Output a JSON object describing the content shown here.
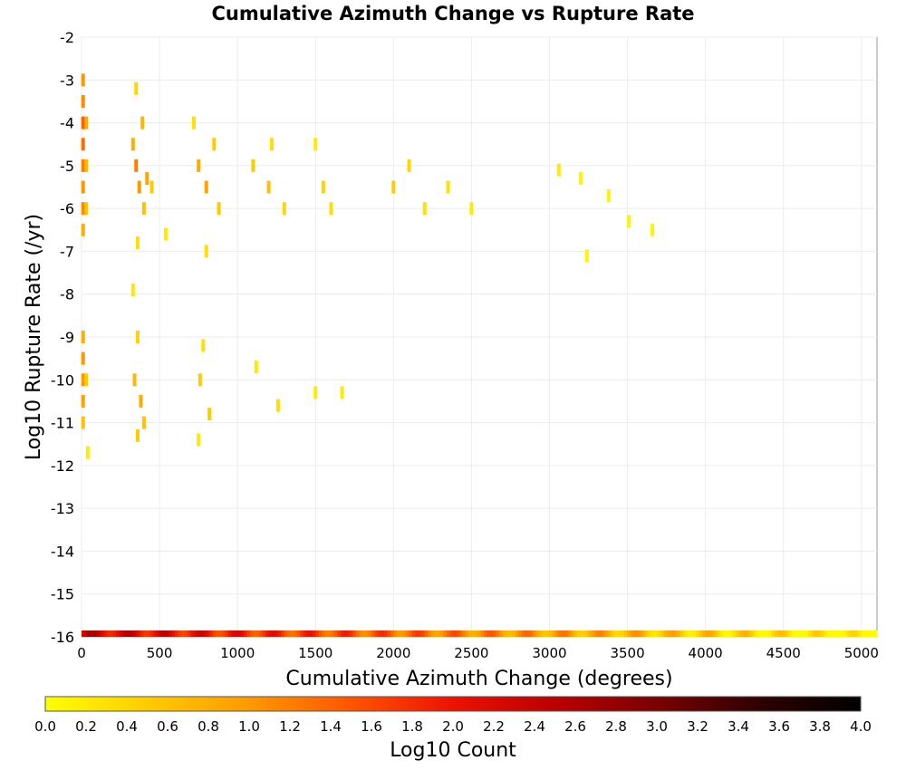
{
  "chart_data": {
    "type": "heatmap",
    "title": "Cumulative Azimuth Change vs Rupture Rate",
    "xlabel": "Cumulative Azimuth Change (degrees)",
    "ylabel": "Log10 Rupture Rate (/yr)",
    "xlim": [
      0,
      5100
    ],
    "ylim": [
      -16,
      -2
    ],
    "grid": true,
    "x_ticks": [
      "0",
      "500",
      "1000",
      "1500",
      "2000",
      "2500",
      "3000",
      "3500",
      "4000",
      "4500",
      "5000"
    ],
    "y_ticks": [
      "-2",
      "-3",
      "-4",
      "-5",
      "-6",
      "-7",
      "-8",
      "-9",
      "-10",
      "-11",
      "-12",
      "-13",
      "-14",
      "-15",
      "-16"
    ],
    "colorbar": {
      "label": "Log10 Count",
      "range": [
        0.0,
        4.0
      ],
      "ticks": [
        "0.0",
        "0.2",
        "0.4",
        "0.6",
        "0.8",
        "1.0",
        "1.2",
        "1.4",
        "1.6",
        "1.8",
        "2.0",
        "2.2",
        "2.4",
        "2.6",
        "2.8",
        "3.0",
        "3.2",
        "3.4",
        "3.6",
        "3.8",
        "4.0"
      ],
      "colors": [
        "#ffff00",
        "#ffcc00",
        "#ff9900",
        "#ff5500",
        "#ee1100",
        "#bb0000",
        "#7a0000",
        "#300000",
        "#000000"
      ]
    },
    "cells": [
      {
        "x": 10,
        "y": -3,
        "v": 1.0
      },
      {
        "x": 10,
        "y": -3.5,
        "v": 1.1
      },
      {
        "x": 10,
        "y": -4,
        "v": 1.4
      },
      {
        "x": 10,
        "y": -4.5,
        "v": 1.3
      },
      {
        "x": 10,
        "y": -5,
        "v": 1.2
      },
      {
        "x": 10,
        "y": -5.5,
        "v": 1.0
      },
      {
        "x": 10,
        "y": -6,
        "v": 1.1
      },
      {
        "x": 10,
        "y": -6.5,
        "v": 0.8
      },
      {
        "x": 10,
        "y": -9,
        "v": 0.8
      },
      {
        "x": 10,
        "y": -9.5,
        "v": 1.0
      },
      {
        "x": 10,
        "y": -10,
        "v": 1.0
      },
      {
        "x": 10,
        "y": -10.5,
        "v": 0.9
      },
      {
        "x": 10,
        "y": -11,
        "v": 0.6
      },
      {
        "x": 30,
        "y": -4,
        "v": 0.8
      },
      {
        "x": 30,
        "y": -5,
        "v": 0.7
      },
      {
        "x": 30,
        "y": -6,
        "v": 0.6
      },
      {
        "x": 30,
        "y": -10,
        "v": 0.5
      },
      {
        "x": 40,
        "y": -11.7,
        "v": 0.2
      },
      {
        "x": 350,
        "y": -3.2,
        "v": 0.4
      },
      {
        "x": 330,
        "y": -4.5,
        "v": 0.8
      },
      {
        "x": 350,
        "y": -5,
        "v": 1.2
      },
      {
        "x": 370,
        "y": -5.5,
        "v": 1.0
      },
      {
        "x": 390,
        "y": -4,
        "v": 0.7
      },
      {
        "x": 400,
        "y": -6,
        "v": 0.6
      },
      {
        "x": 420,
        "y": -5.3,
        "v": 0.9
      },
      {
        "x": 450,
        "y": -5.5,
        "v": 0.5
      },
      {
        "x": 360,
        "y": -6.8,
        "v": 0.3
      },
      {
        "x": 330,
        "y": -7.9,
        "v": 0.2
      },
      {
        "x": 360,
        "y": -9,
        "v": 0.4
      },
      {
        "x": 340,
        "y": -10,
        "v": 0.7
      },
      {
        "x": 380,
        "y": -10.5,
        "v": 0.8
      },
      {
        "x": 400,
        "y": -11,
        "v": 0.6
      },
      {
        "x": 360,
        "y": -11.3,
        "v": 0.5
      },
      {
        "x": 540,
        "y": -6.6,
        "v": 0.2
      },
      {
        "x": 720,
        "y": -4,
        "v": 0.3
      },
      {
        "x": 750,
        "y": -5,
        "v": 0.8
      },
      {
        "x": 800,
        "y": -5.5,
        "v": 0.9
      },
      {
        "x": 850,
        "y": -4.5,
        "v": 0.5
      },
      {
        "x": 880,
        "y": -6,
        "v": 0.5
      },
      {
        "x": 800,
        "y": -7,
        "v": 0.3
      },
      {
        "x": 780,
        "y": -9.2,
        "v": 0.3
      },
      {
        "x": 760,
        "y": -10,
        "v": 0.5
      },
      {
        "x": 820,
        "y": -10.8,
        "v": 0.5
      },
      {
        "x": 750,
        "y": -11.4,
        "v": 0.2
      },
      {
        "x": 1100,
        "y": -5,
        "v": 0.5
      },
      {
        "x": 1200,
        "y": -5.5,
        "v": 0.6
      },
      {
        "x": 1300,
        "y": -6,
        "v": 0.4
      },
      {
        "x": 1220,
        "y": -4.5,
        "v": 0.3
      },
      {
        "x": 1120,
        "y": -9.7,
        "v": 0.2
      },
      {
        "x": 1260,
        "y": -10.6,
        "v": 0.3
      },
      {
        "x": 1550,
        "y": -5.5,
        "v": 0.4
      },
      {
        "x": 1600,
        "y": -6,
        "v": 0.3
      },
      {
        "x": 1500,
        "y": -4.5,
        "v": 0.2
      },
      {
        "x": 1500,
        "y": -10.3,
        "v": 0.2
      },
      {
        "x": 1670,
        "y": -10.3,
        "v": 0.2
      },
      {
        "x": 2000,
        "y": -5.5,
        "v": 0.5
      },
      {
        "x": 2100,
        "y": -5,
        "v": 0.4
      },
      {
        "x": 2200,
        "y": -6,
        "v": 0.3
      },
      {
        "x": 2350,
        "y": -5.5,
        "v": 0.3
      },
      {
        "x": 2500,
        "y": -6,
        "v": 0.2
      },
      {
        "x": 3060,
        "y": -5.1,
        "v": 0.2
      },
      {
        "x": 3200,
        "y": -5.3,
        "v": 0.1
      },
      {
        "x": 3380,
        "y": -5.7,
        "v": 0.1
      },
      {
        "x": 3510,
        "y": -6.3,
        "v": 0.1
      },
      {
        "x": 3660,
        "y": -6.5,
        "v": 0.1
      },
      {
        "x": 3240,
        "y": -7.1,
        "v": 0.1
      }
    ],
    "bottom_row_y": -16
  }
}
